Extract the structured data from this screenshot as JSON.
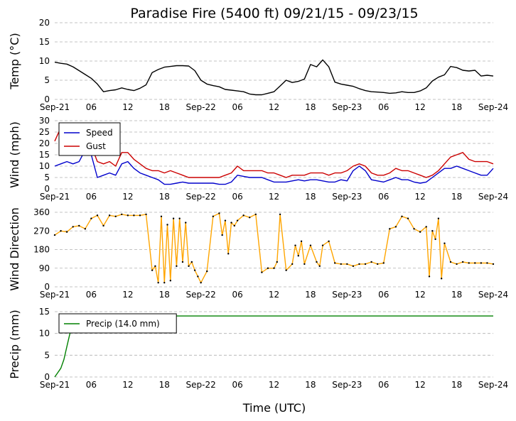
{
  "title": "Paradise Fire (5400 ft) 09/21/15 - 09/23/15",
  "xlabel": "Time (UTC)",
  "x_ticks": [
    "Sep-21",
    "06",
    "12",
    "18",
    "Sep-22",
    "06",
    "12",
    "18",
    "Sep-23",
    "06",
    "12",
    "18",
    "Sep-24"
  ],
  "x_range_hours": [
    0,
    72
  ],
  "chart_data": [
    {
      "type": "line",
      "ylabel": "Temp (°C)",
      "ylim": [
        0,
        20
      ],
      "yticks": [
        0,
        5,
        10,
        15,
        20
      ],
      "grid": true,
      "series": [
        {
          "color": "#000000",
          "x": [
            0,
            1,
            2,
            3,
            4,
            5,
            6,
            7,
            8,
            9,
            10,
            11,
            12,
            13,
            14,
            15,
            16,
            17,
            18,
            19,
            20,
            21,
            22,
            23,
            24,
            25,
            26,
            27,
            28,
            29,
            30,
            31,
            32,
            33,
            34,
            35,
            36,
            37,
            38,
            39,
            40,
            41,
            42,
            43,
            44,
            45,
            46,
            47,
            48,
            49,
            50,
            51,
            52,
            53,
            54,
            55,
            56,
            57,
            58,
            59,
            60,
            61,
            62,
            63,
            64,
            65,
            66,
            67,
            68,
            69,
            70,
            71,
            72
          ],
          "y": [
            9.7,
            9.4,
            9.2,
            8.5,
            7.5,
            6.5,
            5.5,
            4.0,
            2.0,
            2.3,
            2.5,
            3.0,
            2.6,
            2.3,
            2.9,
            3.8,
            7.0,
            7.8,
            8.4,
            8.6,
            8.8,
            8.8,
            8.7,
            7.5,
            5.0,
            4.0,
            3.6,
            3.3,
            2.6,
            2.4,
            2.2,
            2.0,
            1.4,
            1.2,
            1.2,
            1.6,
            2.0,
            3.5,
            5.0,
            4.4,
            4.7,
            5.3,
            9.1,
            8.5,
            10.3,
            8.5,
            4.5,
            4.0,
            3.7,
            3.4,
            2.8,
            2.3,
            2.0,
            1.9,
            1.8,
            1.6,
            1.7,
            2.0,
            1.8,
            1.8,
            2.2,
            3.0,
            4.8,
            5.8,
            6.4,
            8.6,
            8.3,
            7.6,
            7.4,
            7.6,
            6.1,
            6.3,
            6.1
          ]
        }
      ]
    },
    {
      "type": "line",
      "ylabel": "Wind (mph)",
      "ylim": [
        0,
        30
      ],
      "yticks": [
        0,
        5,
        10,
        15,
        20,
        25,
        30
      ],
      "grid": true,
      "legend": "top-left",
      "series": [
        {
          "name": "Speed",
          "color": "#0000cc",
          "x": [
            0,
            1,
            2,
            3,
            4,
            5,
            6,
            7,
            8,
            9,
            10,
            11,
            12,
            13,
            14,
            15,
            16,
            17,
            18,
            19,
            20,
            21,
            22,
            23,
            24,
            25,
            26,
            27,
            28,
            29,
            30,
            31,
            32,
            33,
            34,
            35,
            36,
            37,
            38,
            39,
            40,
            41,
            42,
            43,
            44,
            45,
            46,
            47,
            48,
            49,
            50,
            51,
            52,
            53,
            54,
            55,
            56,
            57,
            58,
            59,
            60,
            61,
            62,
            63,
            64,
            65,
            66,
            67,
            68,
            69,
            70,
            71,
            72
          ],
          "y": [
            10,
            11,
            12,
            11,
            12,
            17,
            15,
            5,
            6,
            7,
            6,
            11,
            12,
            9,
            7,
            6,
            5,
            4,
            2,
            2,
            2.5,
            3,
            2.5,
            2.5,
            2.5,
            2.5,
            2.5,
            2,
            2,
            3,
            6,
            5.5,
            5,
            5,
            5,
            4,
            3,
            3,
            3,
            3.5,
            4,
            3.5,
            4,
            4,
            3.5,
            3,
            3,
            4,
            3.5,
            8,
            10,
            8,
            4,
            3.5,
            3,
            4,
            5,
            4,
            4,
            3,
            2.5,
            3,
            5,
            7,
            9,
            9,
            10,
            9,
            8,
            7,
            6,
            6,
            9
          ]
        },
        {
          "name": "Gust",
          "color": "#cc0000",
          "x": [
            0,
            1,
            2,
            3,
            4,
            5,
            6,
            7,
            8,
            9,
            10,
            11,
            12,
            13,
            14,
            15,
            16,
            17,
            18,
            19,
            20,
            21,
            22,
            23,
            24,
            25,
            26,
            27,
            28,
            29,
            30,
            31,
            32,
            33,
            34,
            35,
            36,
            37,
            38,
            39,
            40,
            41,
            42,
            43,
            44,
            45,
            46,
            47,
            48,
            49,
            50,
            51,
            52,
            53,
            54,
            55,
            56,
            57,
            58,
            59,
            60,
            61,
            62,
            63,
            64,
            65,
            66,
            67,
            68,
            69,
            70,
            71,
            72
          ],
          "y": [
            21,
            27,
            25,
            22,
            23,
            23,
            19,
            12,
            11,
            12,
            10,
            16,
            16,
            13,
            11,
            9,
            8,
            8,
            7,
            8,
            7,
            6,
            5,
            5,
            5,
            5,
            5,
            5,
            6,
            7,
            10,
            8,
            8,
            8,
            8,
            7,
            7,
            6,
            5,
            6,
            6,
            6,
            7,
            7,
            7,
            6,
            7,
            7,
            8,
            10,
            11,
            10,
            7,
            6,
            6,
            7,
            9,
            8,
            8,
            7,
            6,
            5,
            6,
            8,
            11,
            14,
            15,
            16,
            13,
            12,
            12,
            12,
            11
          ]
        }
      ]
    },
    {
      "type": "line",
      "ylabel": "Wind Direction",
      "ylim": [
        0,
        360
      ],
      "yticks": [
        0,
        90,
        180,
        270,
        360
      ],
      "grid": true,
      "series": [
        {
          "color": "#ffa500",
          "marker_color": "#000000",
          "x": [
            0,
            1,
            2,
            3,
            4,
            5,
            6,
            7,
            8,
            9,
            10,
            11,
            12,
            13,
            14,
            15,
            16,
            16.5,
            17,
            17.5,
            18,
            18.5,
            19,
            19.5,
            20,
            20.5,
            21,
            21.5,
            22,
            22.5,
            23,
            23.5,
            24,
            25,
            26,
            27,
            27.5,
            28,
            28.5,
            29,
            29.5,
            30,
            31,
            32,
            33,
            34,
            35,
            36,
            36.5,
            37,
            38,
            39,
            39.5,
            40,
            40.5,
            41,
            42,
            43,
            43.5,
            44,
            45,
            46,
            47,
            48,
            49,
            50,
            51,
            52,
            53,
            54,
            55,
            56,
            57,
            58,
            59,
            60,
            61,
            61.5,
            62,
            62.5,
            63,
            63.5,
            64,
            65,
            66,
            67,
            68,
            69,
            70,
            71,
            72
          ],
          "y": [
            250,
            270,
            265,
            290,
            295,
            280,
            330,
            345,
            295,
            345,
            340,
            350,
            345,
            345,
            345,
            350,
            80,
            100,
            20,
            340,
            20,
            300,
            30,
            330,
            100,
            330,
            120,
            310,
            100,
            120,
            80,
            50,
            20,
            75,
            340,
            355,
            250,
            320,
            160,
            310,
            295,
            320,
            345,
            335,
            350,
            70,
            90,
            90,
            120,
            350,
            80,
            110,
            200,
            150,
            220,
            110,
            200,
            120,
            100,
            200,
            220,
            115,
            110,
            110,
            100,
            110,
            110,
            120,
            110,
            115,
            280,
            290,
            340,
            330,
            280,
            265,
            290,
            50,
            270,
            230,
            330,
            40,
            210,
            120,
            110,
            120,
            115,
            115,
            115,
            115,
            110
          ]
        }
      ]
    },
    {
      "type": "line",
      "ylabel": "Precip (mm)",
      "ylim": [
        0,
        15
      ],
      "yticks": [
        0,
        5,
        10,
        15
      ],
      "grid": true,
      "legend": "top-left",
      "series": [
        {
          "name": "Precip (14.0 mm)",
          "color": "#008000",
          "x": [
            0,
            0.5,
            1,
            1.5,
            2,
            2.5,
            3,
            4,
            6,
            72
          ],
          "y": [
            0,
            1,
            2,
            4,
            7,
            10,
            12,
            13.6,
            14,
            14
          ]
        }
      ]
    }
  ]
}
